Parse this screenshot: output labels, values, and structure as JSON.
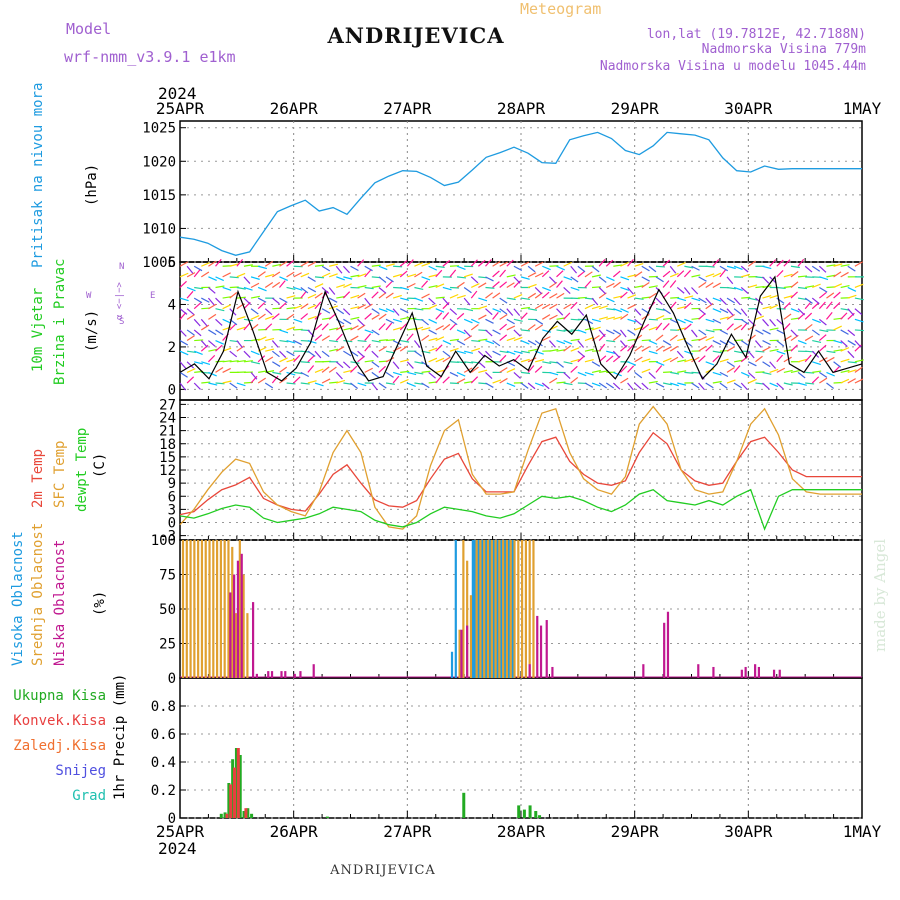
{
  "header": {
    "model_label": "Model",
    "model_name": "wrf-nmm_v3.9.1 e1km",
    "title": "ANDRIJEVICA",
    "meteogram_label": "Meteogram",
    "coords": "lon,lat (19.7812E, 42.7188N)",
    "altitude": "Nadmorska Visina 779m",
    "model_altitude": "Nadmorska Visina u modelu 1045.44m"
  },
  "footer_title": "ANDRIJEVICA",
  "watermark": "made by Angel",
  "x_axis": {
    "year": "2024",
    "tick_labels": [
      "25APR",
      "26APR",
      "27APR",
      "28APR",
      "29APR",
      "30APR",
      "1MAY"
    ]
  },
  "colors": {
    "pressure": "#1e9be0",
    "temp2m": "#e8473a",
    "sfc_temp": "#e0a030",
    "dewpoint": "#22cc22",
    "high_cloud": "#1e9be0",
    "mid_cloud": "#e0a030",
    "low_cloud": "#c01890",
    "total_precip": "#22aa22",
    "conv_precip": "#e84040",
    "frozen_precip": "#f07030",
    "snow": "#5050e0",
    "hail": "#20c0b0"
  },
  "chart_data": [
    {
      "type": "line",
      "panel": "pressure",
      "labels": [
        "Pritisak na nivou mora",
        "(hPa)"
      ],
      "ylim": [
        1005,
        1026
      ],
      "yticks": [
        1005,
        1010,
        1015,
        1020,
        1025
      ],
      "x": [
        0,
        0.5,
        1,
        1.5,
        2,
        2.5,
        3,
        3.5,
        4,
        4.5,
        5,
        5.5,
        6,
        6.5,
        7,
        7.5,
        8,
        8.5,
        9,
        9.5,
        10,
        10.5,
        11,
        11.5,
        12,
        12.5,
        13,
        13.5,
        14,
        14.5,
        15,
        15.5,
        16,
        16.5,
        17,
        17.5,
        18,
        18.5,
        19,
        19.5,
        20,
        20.5,
        21,
        21.5,
        22,
        22.5,
        23,
        23.5,
        24,
        24.5
      ],
      "series": [
        {
          "values": [
            1008.7,
            1008.4,
            1007.8,
            1006.7,
            1006,
            1006.5,
            1009.5,
            1012.5,
            1013.4,
            1014.2,
            1012.6,
            1013.1,
            1012.1,
            1014.5,
            1016.8,
            1017.8,
            1018.6,
            1018.5,
            1017.6,
            1016.4,
            1016.9,
            1018.7,
            1020.6,
            1021.3,
            1022.1,
            1021.2,
            1019.8,
            1019.7,
            1023.2,
            1023.8,
            1024.3,
            1023.4,
            1021.6,
            1021.0,
            1022.3,
            1024.3,
            1024.1,
            1023.9,
            1023.2,
            1020.5,
            1018.6,
            1018.4,
            1019.3,
            1018.8,
            1018.9,
            1018.9,
            1018.9,
            1018.9,
            1018.9,
            1018.9
          ]
        }
      ]
    },
    {
      "type": "line",
      "panel": "wind",
      "labels": [
        "10m Vjetar",
        "Brzina i Pravac",
        "(m/s)"
      ],
      "ylim": [
        -0.5,
        6
      ],
      "yticks": [
        0,
        2,
        4,
        6
      ],
      "compass_labels": [
        "N",
        "E",
        "S",
        "W"
      ],
      "x": [
        0,
        0.5,
        1,
        1.5,
        2,
        2.5,
        3,
        3.5,
        4,
        4.5,
        5,
        5.5,
        6,
        6.5,
        7,
        7.5,
        8,
        8.5,
        9,
        9.5,
        10,
        10.5,
        11,
        11.5,
        12,
        12.5,
        13,
        13.5,
        14,
        14.5,
        15,
        15.5,
        16,
        16.5,
        17,
        17.5,
        18,
        18.5,
        19,
        19.5,
        20,
        20.5,
        21,
        21.5,
        22,
        22.5,
        23,
        23.5
      ],
      "series": [
        {
          "values": [
            0.8,
            1.2,
            0.5,
            1.8,
            4.6,
            2.8,
            0.8,
            0.4,
            1.0,
            2.2,
            4.6,
            3.1,
            1.4,
            0.4,
            0.6,
            2.1,
            3.6,
            1.1,
            0.6,
            1.8,
            0.8,
            1.6,
            1.1,
            1.4,
            0.9,
            2.4,
            3.2,
            2.6,
            3.5,
            1.2,
            0.5,
            1.6,
            3.2,
            4.7,
            3.6,
            2.0,
            0.5,
            1.2,
            2.6,
            1.5,
            4.4,
            5.3,
            1.2,
            0.8,
            1.8,
            0.8,
            1.0,
            1.2
          ]
        }
      ]
    },
    {
      "type": "line",
      "panel": "temperature",
      "labels": [
        "2m Temp",
        "SFC Temp",
        "dewpt Temp",
        "(C)"
      ],
      "ylim": [
        -4,
        28
      ],
      "yticks": [
        -3,
        0,
        3,
        6,
        9,
        12,
        15,
        18,
        21,
        24,
        27
      ],
      "x": [
        0,
        0.5,
        1,
        1.5,
        2,
        2.5,
        3,
        3.5,
        4,
        4.5,
        5,
        5.5,
        6,
        6.5,
        7,
        7.5,
        8,
        8.5,
        9,
        9.5,
        10,
        10.5,
        11,
        11.5,
        12,
        12.5,
        13,
        13.5,
        14,
        14.5,
        15,
        15.5,
        16,
        16.5,
        17,
        17.5,
        18,
        18.5,
        19,
        19.5,
        20,
        20.5,
        21,
        21.5,
        22,
        22.5,
        23,
        23.5,
        24,
        24.5
      ],
      "series": [
        {
          "name": "2m Temp",
          "values": [
            1.8,
            2.5,
            5.2,
            7.5,
            8.6,
            10.3,
            5.5,
            4.0,
            3.0,
            2.6,
            6.5,
            11.0,
            13.2,
            9.0,
            5.2,
            3.8,
            3.5,
            5.0,
            10.0,
            14.5,
            15.8,
            10.0,
            7.0,
            7.0,
            7.0,
            13.0,
            18.5,
            19.5,
            14.0,
            11.0,
            9.0,
            8.5,
            9.5,
            16.0,
            20.5,
            18.0,
            12.0,
            9.5,
            8.5,
            9.0,
            14.0,
            18.5,
            19.5,
            16.0,
            12.0,
            10.5,
            10.5,
            10.5,
            10.5,
            10.5
          ]
        },
        {
          "name": "SFC Temp",
          "values": [
            -0.5,
            3.0,
            7.5,
            11.5,
            14.5,
            13.5,
            7.0,
            4.0,
            2.5,
            1.5,
            7.0,
            16.0,
            21.0,
            16.0,
            3.5,
            -1.0,
            -1.5,
            1.5,
            13.0,
            21.0,
            23.5,
            11.0,
            6.5,
            6.5,
            7.0,
            16.5,
            25.0,
            26.0,
            16.0,
            10.0,
            7.5,
            6.5,
            10.5,
            22.5,
            26.5,
            22.5,
            12.0,
            7.5,
            6.5,
            7.0,
            14.0,
            22.5,
            26.0,
            20.0,
            10.0,
            7.0,
            6.5,
            6.5,
            6.5,
            6.5
          ]
        },
        {
          "name": "dewpt Temp",
          "values": [
            1.5,
            1.0,
            2.0,
            3.2,
            4.0,
            3.5,
            1.0,
            0.0,
            0.5,
            1.0,
            2.0,
            3.5,
            3.0,
            2.5,
            0.5,
            -0.5,
            -1.0,
            0.0,
            2.0,
            3.5,
            3.0,
            2.5,
            1.5,
            1.0,
            2.0,
            4.0,
            6.0,
            5.5,
            6.0,
            5.0,
            3.5,
            2.5,
            4.0,
            6.5,
            7.5,
            5.0,
            4.5,
            4.0,
            5.0,
            4.0,
            6.0,
            7.5,
            -1.5,
            6.0,
            7.5,
            7.5,
            7.5,
            7.5,
            7.5,
            7.5
          ]
        }
      ]
    },
    {
      "type": "bar",
      "panel": "clouds",
      "labels": [
        "Visoka Oblacnost",
        "Srednja Oblacnost",
        "Niska Oblacnost",
        "(%)"
      ],
      "ylim": [
        0,
        100
      ],
      "yticks": [
        0,
        25,
        50,
        75,
        100
      ],
      "series": [
        {
          "name": "Visoka Oblacnost",
          "x": [
            14.3,
            14.5,
            15.4,
            15.5,
            15.7,
            15.9,
            16.1,
            16.3,
            16.5,
            16.7,
            16.9,
            17.1,
            17.3,
            17.5
          ],
          "values": [
            19,
            100,
            100,
            100,
            100,
            100,
            100,
            100,
            100,
            100,
            100,
            100,
            100,
            100
          ]
        },
        {
          "name": "Srednja Oblacnost",
          "x": [
            0.1,
            0.3,
            0.5,
            0.7,
            0.9,
            1.1,
            1.3,
            1.5,
            1.7,
            1.9,
            2.1,
            2.3,
            2.5,
            2.7,
            2.9,
            3.1,
            3.3,
            3.5,
            14.7,
            14.9,
            15.1,
            15.3,
            15.6,
            15.8,
            16.0,
            16.2,
            16.4,
            16.6,
            16.8,
            17.0,
            17.2,
            17.4,
            17.6,
            17.8,
            18.0,
            18.2,
            18.4,
            18.6
          ],
          "values": [
            100,
            100,
            100,
            100,
            100,
            100,
            100,
            100,
            100,
            100,
            100,
            100,
            100,
            95,
            47,
            100,
            75,
            47,
            35,
            100,
            85,
            60,
            100,
            100,
            100,
            100,
            100,
            100,
            100,
            100,
            100,
            100,
            100,
            100,
            100,
            100,
            100,
            100
          ]
        },
        {
          "name": "Niska Oblacnost",
          "x": [
            2.6,
            2.8,
            3.0,
            3.2,
            3.8,
            4.0,
            4.6,
            4.8,
            5.3,
            5.5,
            6.0,
            6.3,
            7.0,
            14.8,
            15.1,
            18.4,
            18.8,
            19.0,
            19.3,
            19.6,
            24.4,
            25.5,
            25.7,
            27.3,
            28.1,
            29.6,
            29.8,
            30.3,
            30.5,
            31.3,
            31.6
          ],
          "values": [
            62,
            75,
            85,
            90,
            55,
            3,
            5,
            5,
            5,
            5,
            3,
            5,
            10,
            35,
            38,
            10,
            45,
            38,
            42,
            8,
            10,
            40,
            48,
            10,
            8,
            6,
            8,
            10,
            8,
            6,
            6
          ]
        }
      ]
    },
    {
      "type": "bar",
      "panel": "precip",
      "labels": [
        "Ukupna Kisa",
        "Konvek.Kisa",
        "Zaledj.Kisa",
        "Snijeg",
        "Grad",
        "1hr Precip (mm)"
      ],
      "ylim": [
        0,
        1.0
      ],
      "yticks": [
        0,
        0.2,
        0.4,
        0.6,
        0.8
      ],
      "series": [
        {
          "name": "Ukupna Kisa",
          "x": [
            2.1,
            2.3,
            2.5,
            2.7,
            2.9,
            3.1,
            3.3,
            3.5,
            3.7,
            7.7,
            14.9,
            17.8,
            18.1,
            18.4,
            18.7,
            18.9
          ],
          "values": [
            0.03,
            0.04,
            0.25,
            0.42,
            0.5,
            0.45,
            0.05,
            0.07,
            0.03,
            0.01,
            0.18,
            0.09,
            0.06,
            0.09,
            0.05,
            0.02
          ]
        },
        {
          "name": "Konvek.Kisa",
          "x": [
            2.4,
            2.6,
            2.8,
            3.0,
            3.4
          ],
          "values": [
            0.03,
            0.24,
            0.36,
            0.5,
            0.07
          ]
        }
      ]
    }
  ]
}
